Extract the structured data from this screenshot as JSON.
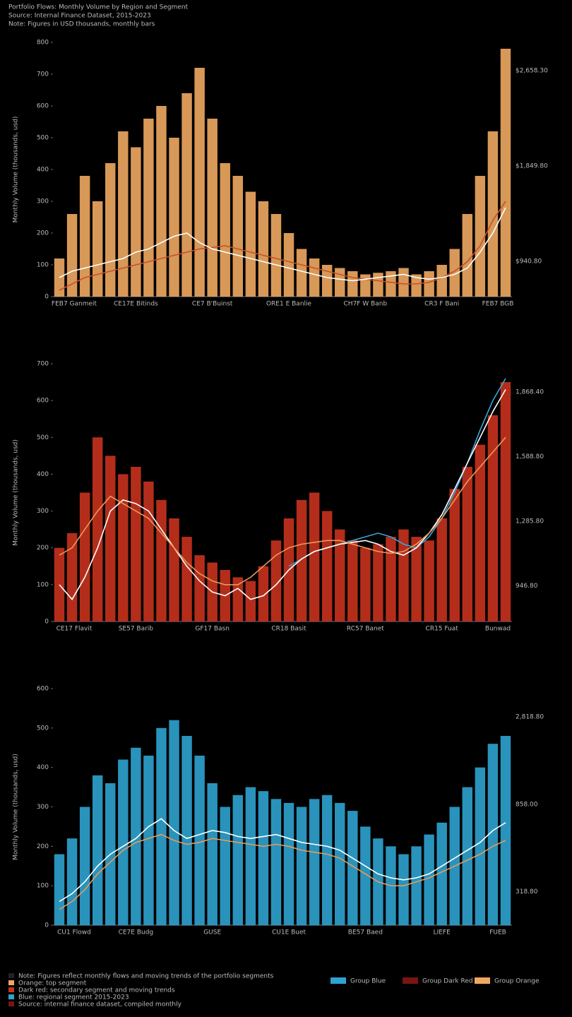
{
  "header": [
    "Portfolio Flows: Monthly Volume by Region and Segment",
    "Source: Internal Finance Dataset, 2015-2023",
    "Note: Figures in USD thousands, monthly bars"
  ],
  "chart_data": [
    {
      "type": "bar",
      "y_label": "Monthly Volume (thousands, usd)",
      "ylim": [
        0,
        800
      ],
      "yticks": [
        0,
        100,
        200,
        300,
        400,
        500,
        600,
        700,
        800
      ],
      "grid": false,
      "categories": [
        "FEB7 Ganmeit",
        null,
        null,
        null,
        null,
        null,
        "CE17E Bitinds",
        null,
        null,
        null,
        null,
        null,
        "CE7 B'Buinst",
        null,
        null,
        null,
        null,
        null,
        "ORE1 E Banlie",
        null,
        null,
        null,
        null,
        null,
        "CH7F W Banb",
        null,
        null,
        null,
        null,
        null,
        "CR3 F Bani",
        null,
        null,
        null,
        null,
        "FEB7 BGB"
      ],
      "annotations": [
        "$2,658.30",
        "$1,849.80",
        "$940.80"
      ],
      "series": [
        {
          "name": "Volume",
          "kind": "bar",
          "color": "#f0a860",
          "values": [
            120,
            260,
            380,
            300,
            420,
            520,
            470,
            560,
            600,
            500,
            640,
            720,
            560,
            420,
            380,
            330,
            300,
            260,
            200,
            150,
            120,
            100,
            90,
            80,
            70,
            75,
            80,
            90,
            70,
            80,
            100,
            150,
            260,
            380,
            520,
            780
          ]
        },
        {
          "name": "Trend",
          "kind": "line",
          "color": "#c8502a",
          "values": [
            20,
            40,
            60,
            70,
            80,
            90,
            100,
            110,
            120,
            130,
            140,
            150,
            155,
            160,
            150,
            140,
            130,
            120,
            110,
            100,
            90,
            80,
            70,
            60,
            55,
            50,
            45,
            40,
            40,
            45,
            60,
            80,
            110,
            160,
            240,
            300
          ]
        },
        {
          "name": "Average",
          "kind": "line",
          "color": "#ffffff",
          "values": [
            60,
            80,
            90,
            100,
            110,
            120,
            140,
            150,
            170,
            190,
            200,
            170,
            150,
            140,
            130,
            120,
            110,
            100,
            90,
            80,
            70,
            60,
            55,
            50,
            55,
            60,
            65,
            70,
            60,
            55,
            60,
            70,
            90,
            140,
            200,
            280
          ]
        }
      ]
    },
    {
      "type": "bar",
      "y_label": "Monthly Volume (thousands, usd)",
      "ylim": [
        0,
        700
      ],
      "yticks": [
        0,
        100,
        200,
        300,
        400,
        500,
        600,
        700
      ],
      "grid": false,
      "categories": [
        "CE17 Flavit",
        null,
        null,
        null,
        null,
        null,
        "SE57 Barib",
        null,
        null,
        null,
        null,
        null,
        "GF17 Basn",
        null,
        null,
        null,
        null,
        null,
        "CR18 Basit",
        null,
        null,
        null,
        null,
        null,
        "RC57 Banet",
        null,
        null,
        null,
        null,
        null,
        "CR15 Fuat",
        null,
        null,
        null,
        null,
        "Bunwad"
      ],
      "annotations": [
        "1,868.40",
        "1,588.80",
        "1,285.80",
        "946.80"
      ],
      "series": [
        {
          "name": "Volume",
          "kind": "bar",
          "color": "#c8321e",
          "values": [
            200,
            240,
            350,
            500,
            450,
            400,
            420,
            380,
            330,
            280,
            230,
            180,
            160,
            140,
            120,
            110,
            150,
            220,
            280,
            330,
            350,
            300,
            250,
            220,
            200,
            210,
            230,
            250,
            230,
            220,
            280,
            360,
            420,
            480,
            560,
            650
          ]
        },
        {
          "name": "Blue",
          "kind": "line",
          "color": "#3aa6d8",
          "values": [
            null,
            null,
            null,
            null,
            null,
            null,
            null,
            null,
            null,
            null,
            null,
            null,
            null,
            null,
            null,
            null,
            null,
            null,
            150,
            170,
            190,
            200,
            210,
            220,
            230,
            240,
            230,
            210,
            200,
            230,
            280,
            350,
            430,
            520,
            600,
            660
          ]
        },
        {
          "name": "White",
          "kind": "line",
          "color": "#ffffff",
          "values": [
            100,
            60,
            120,
            200,
            300,
            330,
            320,
            300,
            250,
            200,
            150,
            110,
            80,
            70,
            90,
            60,
            70,
            100,
            140,
            170,
            190,
            200,
            210,
            215,
            220,
            210,
            190,
            180,
            200,
            240,
            290,
            360,
            430,
            500,
            570,
            630
          ]
        },
        {
          "name": "Orange",
          "kind": "line",
          "color": "#e89a5a",
          "values": [
            180,
            200,
            250,
            300,
            340,
            320,
            300,
            280,
            240,
            200,
            160,
            130,
            110,
            100,
            100,
            120,
            150,
            180,
            200,
            210,
            215,
            220,
            220,
            210,
            200,
            190,
            185,
            190,
            210,
            240,
            280,
            330,
            380,
            420,
            460,
            500
          ]
        }
      ]
    },
    {
      "type": "bar",
      "y_label": "Monthly Volume (thousands, usd)",
      "ylim": [
        0,
        600
      ],
      "yticks": [
        0,
        100,
        200,
        300,
        400,
        500,
        600
      ],
      "grid": false,
      "categories": [
        "CU1 Flowd",
        null,
        null,
        null,
        null,
        null,
        "CE7E Budg",
        null,
        null,
        null,
        null,
        null,
        "GUSE",
        null,
        null,
        null,
        null,
        null,
        "CU1E Buet",
        null,
        null,
        null,
        null,
        null,
        "BE57 Baed",
        null,
        null,
        null,
        null,
        null,
        "LIEFE",
        null,
        null,
        null,
        null,
        "FUEB"
      ],
      "annotations": [
        "2,818.80",
        "858.00",
        "318.80"
      ],
      "series": [
        {
          "name": "Volume",
          "kind": "bar",
          "color": "#2ea3d0",
          "values": [
            180,
            220,
            300,
            380,
            360,
            420,
            450,
            430,
            500,
            520,
            480,
            430,
            360,
            300,
            330,
            350,
            340,
            320,
            310,
            300,
            320,
            330,
            310,
            290,
            250,
            220,
            200,
            180,
            200,
            230,
            260,
            300,
            350,
            400,
            460,
            480
          ]
        },
        {
          "name": "White",
          "kind": "line",
          "color": "#ffffff",
          "values": [
            60,
            80,
            110,
            150,
            180,
            200,
            220,
            250,
            270,
            240,
            220,
            230,
            240,
            235,
            225,
            220,
            225,
            230,
            220,
            210,
            205,
            200,
            190,
            170,
            150,
            130,
            120,
            115,
            120,
            130,
            150,
            170,
            190,
            210,
            240,
            260
          ]
        },
        {
          "name": "Orange",
          "kind": "line",
          "color": "#e89a5a",
          "values": [
            40,
            60,
            90,
            130,
            160,
            190,
            210,
            220,
            230,
            215,
            205,
            210,
            220,
            215,
            210,
            205,
            200,
            205,
            200,
            190,
            185,
            180,
            170,
            150,
            130,
            110,
            100,
            100,
            110,
            120,
            135,
            150,
            165,
            180,
            200,
            215
          ]
        }
      ]
    }
  ],
  "notes": [
    "Note: Figures reflect monthly flows and moving trends of the portfolio segments",
    "Orange: top segment",
    "Dark red: secondary segment and moving trends",
    "Blue: regional segment 2015-2023",
    "Source: internal finance dataset, compiled monthly"
  ],
  "legend": [
    {
      "label": "Group Blue",
      "color": "#2ea3d0"
    },
    {
      "label": "Group Dark Red",
      "color": "#7a1410"
    },
    {
      "label": "Group Orange",
      "color": "#f0a860"
    }
  ]
}
